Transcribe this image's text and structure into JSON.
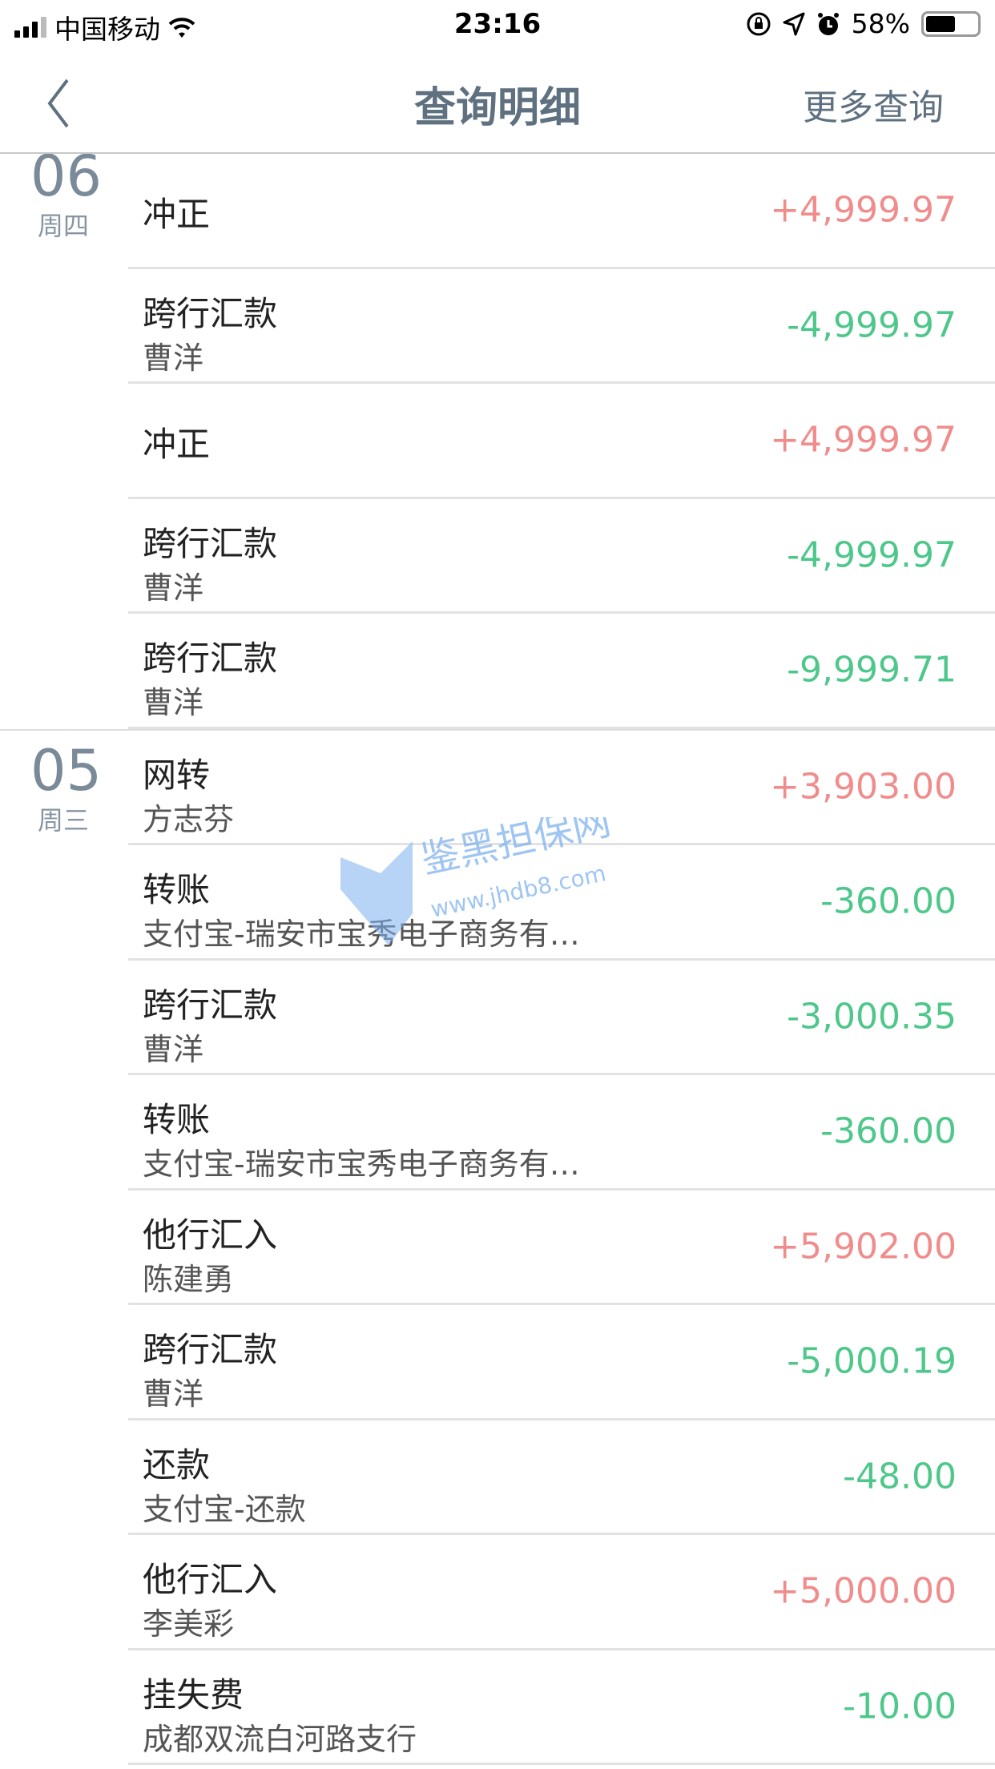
{
  "status": {
    "carrier": "中国移动",
    "time": "23:16",
    "battery": "58%",
    "battery_level": 0.58
  },
  "nav": {
    "title": "查询明细",
    "more": "更多查询"
  },
  "colors": {
    "income": "#f08c8c",
    "expense": "#4dc78a",
    "nav": "#5f7080"
  },
  "watermark": {
    "name": "鉴黑担保网",
    "url": "www.jhdb8.com"
  },
  "groups": [
    {
      "day": "06",
      "weekday": "周四",
      "rows": [
        {
          "title": "冲正",
          "sub": "",
          "amount": "+4,999.97",
          "type": "in"
        },
        {
          "title": "跨行汇款",
          "sub": "曹洋",
          "amount": "-4,999.97",
          "type": "out"
        },
        {
          "title": "冲正",
          "sub": "",
          "amount": "+4,999.97",
          "type": "in"
        },
        {
          "title": "跨行汇款",
          "sub": "曹洋",
          "amount": "-4,999.97",
          "type": "out"
        },
        {
          "title": "跨行汇款",
          "sub": "曹洋",
          "amount": "-9,999.71",
          "type": "out"
        }
      ]
    },
    {
      "day": "05",
      "weekday": "周三",
      "rows": [
        {
          "title": "网转",
          "sub": "方志芬",
          "amount": "+3,903.00",
          "type": "in"
        },
        {
          "title": "转账",
          "sub": "支付宝-瑞安市宝秀电子商务有…",
          "amount": "-360.00",
          "type": "out"
        },
        {
          "title": "跨行汇款",
          "sub": "曹洋",
          "amount": "-3,000.35",
          "type": "out"
        },
        {
          "title": "转账",
          "sub": "支付宝-瑞安市宝秀电子商务有…",
          "amount": "-360.00",
          "type": "out"
        },
        {
          "title": "他行汇入",
          "sub": "陈建勇",
          "amount": "+5,902.00",
          "type": "in"
        },
        {
          "title": "跨行汇款",
          "sub": "曹洋",
          "amount": "-5,000.19",
          "type": "out"
        },
        {
          "title": "还款",
          "sub": "支付宝-还款",
          "amount": "-48.00",
          "type": "out"
        },
        {
          "title": "他行汇入",
          "sub": "李美彩",
          "amount": "+5,000.00",
          "type": "in"
        },
        {
          "title": "挂失费",
          "sub": "成都双流白河路支行",
          "amount": "-10.00",
          "type": "out"
        }
      ]
    }
  ]
}
